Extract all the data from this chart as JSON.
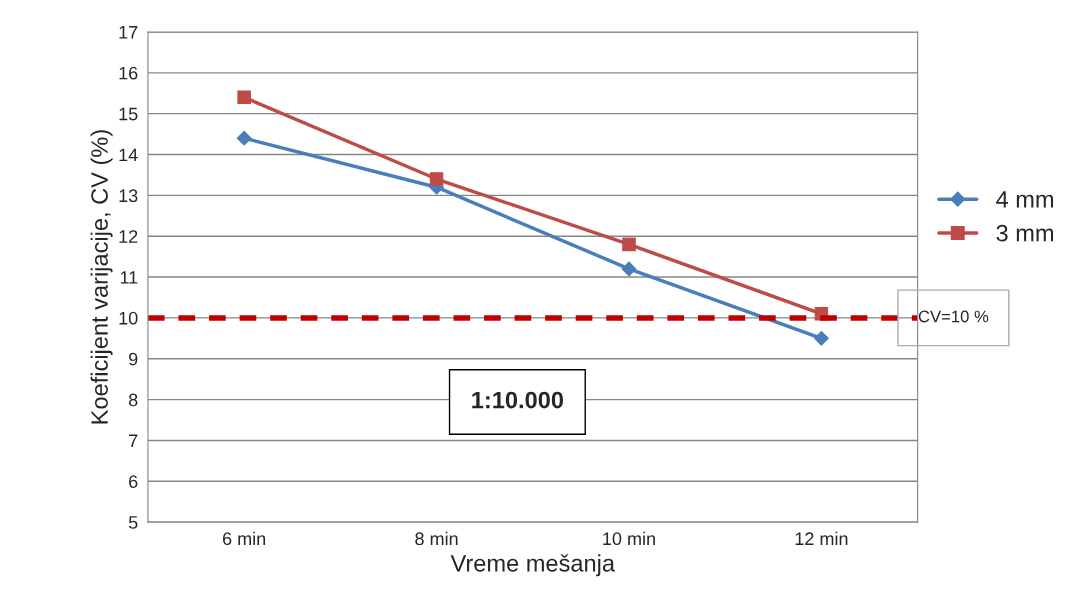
{
  "chart_data": {
    "type": "line",
    "xlabel": "Vreme mešanja",
    "ylabel": "Koeficijent varijacije, CV (%)",
    "categories": [
      "6 min",
      "8 min",
      "10 min",
      "12 min"
    ],
    "series": [
      {
        "name": "4 mm",
        "color": "#4a7ebb",
        "marker": "diamond",
        "values": [
          14.4,
          13.2,
          11.2,
          9.5
        ]
      },
      {
        "name": "3 mm",
        "color": "#be4b48",
        "marker": "square",
        "values": [
          15.4,
          13.4,
          11.8,
          10.1
        ]
      }
    ],
    "ylim": [
      5,
      17
    ],
    "yticks": [
      5,
      6,
      7,
      8,
      9,
      10,
      11,
      12,
      13,
      14,
      15,
      16,
      17
    ],
    "grid": "y",
    "legend": "right",
    "line_style": "solid",
    "ref_lines": [
      {
        "axis": "y",
        "value": 10,
        "label": "CV=10 %",
        "color": "#c00000",
        "line_style": "dashed"
      }
    ],
    "annotations": [
      "1:10.000"
    ]
  }
}
